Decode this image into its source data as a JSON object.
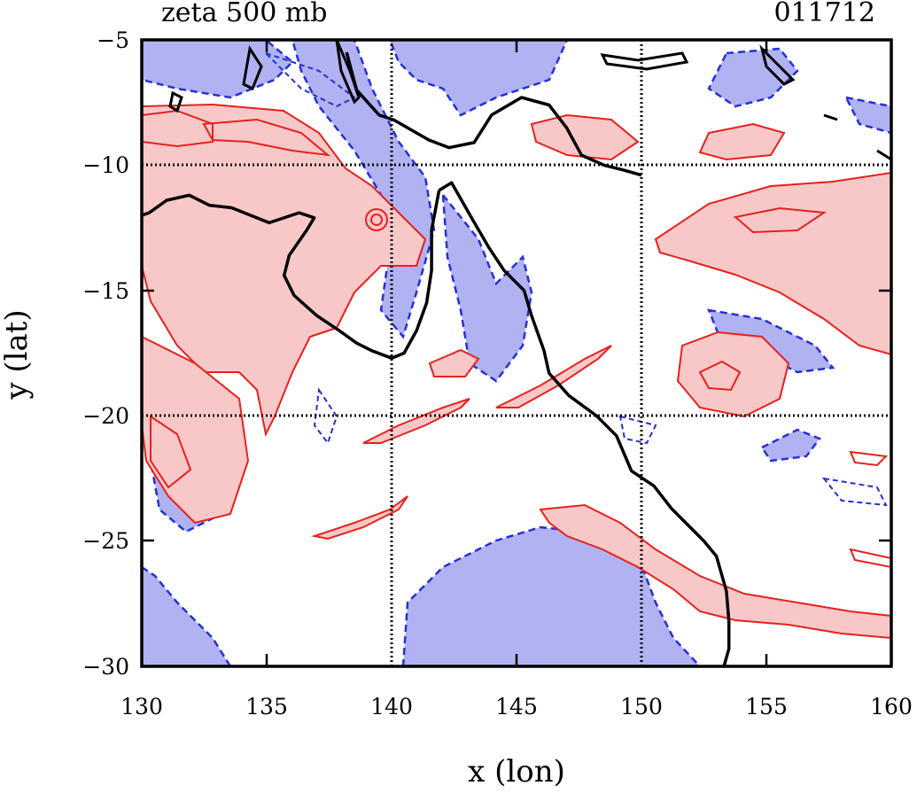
{
  "title_left": "zeta 500 mb",
  "title_right": "011712",
  "xlabel": "x (lon)",
  "ylabel": "y (lat)",
  "colors": {
    "positive_fill": "#f8c8c8",
    "positive_line": "#e8201c",
    "negative_fill": "#b0b2f2",
    "negative_line": "#2430d8",
    "coastline": "#000000",
    "grid": "#000000"
  },
  "chart_data": {
    "type": "contour-map",
    "xlim": [
      130,
      160
    ],
    "ylim": [
      -30,
      -5
    ],
    "x_ticks": [
      130,
      135,
      140,
      145,
      150,
      155,
      160
    ],
    "y_ticks": [
      -5,
      -10,
      -15,
      -20,
      -25,
      -30
    ],
    "x_tick_labels": [
      "130",
      "135",
      "140",
      "145",
      "150",
      "155",
      "160"
    ],
    "y_tick_labels": [
      "−5",
      "−10",
      "−15",
      "−20",
      "−25",
      "−30"
    ],
    "gridlines_lon": [
      140,
      150
    ],
    "gridlines_lat": [
      -10,
      -20
    ],
    "grid": true,
    "contour_style": {
      "positive": "solid red lines with light red shading",
      "negative": "dashed blue lines with light blue shading"
    },
    "coastline_points": [
      [
        138.2,
        -5.5
      ],
      [
        138.6,
        -7.0
      ],
      [
        139.5,
        -8.0
      ],
      [
        140.1,
        -8.2
      ],
      [
        141.5,
        -9.0
      ],
      [
        142.3,
        -9.3
      ],
      [
        143.3,
        -9.1
      ],
      [
        144.0,
        -8.0
      ],
      [
        145.2,
        -7.3
      ],
      [
        146.3,
        -7.6
      ],
      [
        147.0,
        -8.5
      ],
      [
        147.6,
        -9.6
      ],
      [
        148.5,
        -10.0
      ],
      [
        149.3,
        -10.2
      ],
      [
        150.0,
        -10.4
      ],
      [
        141.9,
        -11.0
      ],
      [
        141.6,
        -12.6
      ],
      [
        141.6,
        -14.2
      ],
      [
        141.4,
        -15.5
      ],
      [
        141.0,
        -16.6
      ],
      [
        140.5,
        -17.5
      ],
      [
        140.0,
        -17.7
      ],
      [
        139.2,
        -17.4
      ],
      [
        138.6,
        -17.1
      ],
      [
        137.9,
        -16.6
      ],
      [
        137.0,
        -16.0
      ],
      [
        136.1,
        -15.2
      ],
      [
        135.7,
        -14.4
      ],
      [
        135.9,
        -13.6
      ],
      [
        136.6,
        -12.6
      ],
      [
        136.9,
        -12.1
      ],
      [
        136.3,
        -11.9
      ],
      [
        135.1,
        -12.3
      ],
      [
        133.6,
        -11.7
      ],
      [
        132.7,
        -11.6
      ],
      [
        131.9,
        -11.2
      ],
      [
        131.0,
        -11.4
      ],
      [
        130.3,
        -11.9
      ],
      [
        130.0,
        -12.0
      ],
      [
        141.9,
        -11.0
      ],
      [
        142.4,
        -10.7
      ],
      [
        143.2,
        -12.1
      ],
      [
        143.9,
        -13.3
      ],
      [
        144.5,
        -14.2
      ],
      [
        145.3,
        -15.0
      ],
      [
        145.6,
        -16.0
      ],
      [
        146.1,
        -17.4
      ],
      [
        146.3,
        -18.3
      ],
      [
        147.1,
        -19.2
      ],
      [
        148.2,
        -20.0
      ],
      [
        149.0,
        -20.8
      ],
      [
        149.6,
        -22.2
      ],
      [
        150.5,
        -22.8
      ],
      [
        151.2,
        -23.7
      ],
      [
        152.5,
        -25.0
      ],
      [
        153.0,
        -25.6
      ],
      [
        153.4,
        -27.0
      ],
      [
        153.5,
        -28.2
      ],
      [
        153.5,
        -29.3
      ],
      [
        153.3,
        -30.0
      ]
    ]
  }
}
